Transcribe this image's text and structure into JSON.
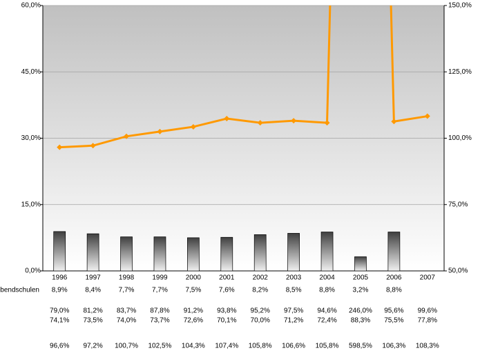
{
  "chart_data": {
    "type": "bar-line",
    "categories": [
      "1996",
      "1997",
      "1998",
      "1999",
      "2000",
      "2001",
      "2002",
      "2003",
      "2004",
      "2005",
      "2006",
      "2007"
    ],
    "series": [
      {
        "name": "Abendschulen",
        "type": "bar",
        "color": "#666666",
        "values": [
          8.9,
          8.4,
          7.7,
          7.7,
          7.5,
          7.6,
          8.2,
          8.5,
          8.8,
          3.2,
          8.8,
          null
        ],
        "value_labels": [
          "8,9%",
          "8,4%",
          "7,7%",
          "7,7%",
          "7,5%",
          "7,6%",
          "8,2%",
          "8,5%",
          "8,8%",
          "3,2%",
          "8,8%",
          null
        ]
      },
      {
        "type": "line",
        "axis": "y2",
        "color": "#ff9900",
        "values": [
          96.6,
          97.2,
          100.7,
          102.5,
          104.3,
          107.4,
          105.8,
          106.6,
          105.8,
          598.5,
          106.3,
          108.3
        ],
        "value_labels": [
          "96,6%",
          "97,2%",
          "100,7%",
          "102,5%",
          "104,3%",
          "107,4%",
          "105,8%",
          "106,6%",
          "105,8%",
          "598,5%",
          "106,3%",
          "108,3%"
        ]
      }
    ],
    "table_rows": [
      [
        "79,0%",
        "81,2%",
        "83,7%",
        "87,8%",
        "91,2%",
        "93,8%",
        "95,2%",
        "97,5%",
        "94,6%",
        "246,0%",
        "95,6%",
        "99,6%"
      ],
      [
        "74,1%",
        "73,5%",
        "74,0%",
        "73,7%",
        "72,6%",
        "70,1%",
        "70,0%",
        "71,2%",
        "72,4%",
        "88,3%",
        "75,5%",
        "77,8%"
      ]
    ],
    "ylim": [
      0,
      60
    ],
    "yticks": [
      {
        "value": 0,
        "label": "0,0%"
      },
      {
        "value": 15,
        "label": "15,0%"
      },
      {
        "value": 30,
        "label": "30,0%"
      },
      {
        "value": 45,
        "label": "45,0%"
      },
      {
        "value": 60,
        "label": "60,0%"
      }
    ],
    "y2lim": [
      50,
      150
    ],
    "y2ticks": [
      {
        "value": 50,
        "label": "50,0%"
      },
      {
        "value": 75,
        "label": "75,0%"
      },
      {
        "value": 100,
        "label": "100,0%"
      },
      {
        "value": 125,
        "label": "125,0%"
      },
      {
        "value": 150,
        "label": "150,0%"
      }
    ],
    "grid": true
  }
}
